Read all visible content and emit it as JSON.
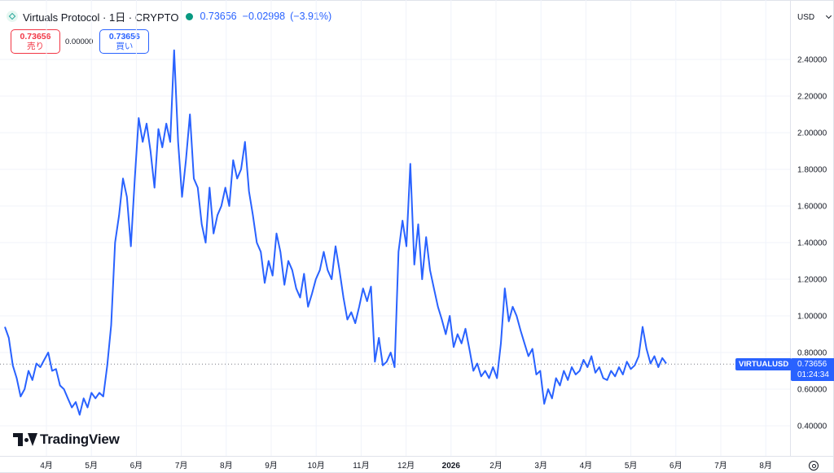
{
  "header": {
    "title": "Virtuals Protocol · 1日 · CRYPTO",
    "price": "0.73656",
    "change": "−0.02998",
    "change_pct": "(−3.91%)",
    "currency": "USD"
  },
  "quote": {
    "sell_price": "0.73656",
    "sell_label": "売り",
    "spread": "0.00000",
    "buy_price": "0.73656",
    "buy_label": "買い"
  },
  "last_price_tag": {
    "symbol": "VIRTUALUSD",
    "price": "0.73656",
    "countdown": "01:24:34"
  },
  "branding": {
    "logo_text": "TradingView"
  },
  "colors": {
    "line": "#2962ff",
    "accent": "#2962ff",
    "sell": "#f23645",
    "up": "#089981"
  },
  "chart_data": {
    "type": "line",
    "title": "",
    "xlabel": "",
    "ylabel": "",
    "ylim": [
      0.3,
      2.5
    ],
    "yticks": [
      "0.40000",
      "0.60000",
      "0.80000",
      "1.00000",
      "1.20000",
      "1.40000",
      "1.60000",
      "1.80000",
      "2.00000",
      "2.20000",
      "2.40000"
    ],
    "xticks": [
      "4月",
      "5月",
      "6月",
      "7月",
      "8月",
      "9月",
      "10月",
      "11月",
      "12月",
      "2026",
      "2月",
      "3月",
      "4月",
      "5月",
      "6月",
      "7月",
      "8月"
    ],
    "grid": true,
    "last_value": 0.73656,
    "series": [
      {
        "values": [
          0.94,
          0.88,
          0.73,
          0.66,
          0.56,
          0.6,
          0.7,
          0.65,
          0.74,
          0.72,
          0.76,
          0.8,
          0.7,
          0.71,
          0.62,
          0.6,
          0.55,
          0.5,
          0.53,
          0.46,
          0.55,
          0.5,
          0.58,
          0.55,
          0.58,
          0.56,
          0.73,
          0.95,
          1.4,
          1.55,
          1.75,
          1.65,
          1.38,
          1.75,
          2.08,
          1.95,
          2.05,
          1.9,
          1.7,
          2.02,
          1.92,
          2.05,
          1.95,
          2.45,
          1.95,
          1.65,
          1.85,
          2.1,
          1.75,
          1.7,
          1.5,
          1.4,
          1.7,
          1.45,
          1.55,
          1.6,
          1.7,
          1.6,
          1.85,
          1.75,
          1.8,
          1.95,
          1.68,
          1.55,
          1.4,
          1.35,
          1.18,
          1.3,
          1.22,
          1.45,
          1.35,
          1.17,
          1.3,
          1.25,
          1.15,
          1.1,
          1.23,
          1.05,
          1.12,
          1.2,
          1.25,
          1.35,
          1.25,
          1.2,
          1.38,
          1.25,
          1.1,
          0.98,
          1.02,
          0.96,
          1.05,
          1.15,
          1.08,
          1.16,
          0.75,
          0.88,
          0.73,
          0.75,
          0.8,
          0.72,
          1.35,
          1.52,
          1.38,
          1.83,
          1.28,
          1.5,
          1.2,
          1.43,
          1.25,
          1.15,
          1.05,
          0.98,
          0.9,
          1.0,
          0.83,
          0.9,
          0.85,
          0.93,
          0.82,
          0.7,
          0.74,
          0.67,
          0.7,
          0.66,
          0.72,
          0.66,
          0.85,
          1.15,
          0.97,
          1.05,
          1.0,
          0.92,
          0.85,
          0.78,
          0.82,
          0.68,
          0.7,
          0.52,
          0.6,
          0.55,
          0.66,
          0.62,
          0.7,
          0.65,
          0.72,
          0.68,
          0.7,
          0.76,
          0.72,
          0.78,
          0.69,
          0.72,
          0.66,
          0.65,
          0.7,
          0.67,
          0.72,
          0.68,
          0.75,
          0.71,
          0.73,
          0.78,
          0.94,
          0.82,
          0.74,
          0.78,
          0.72,
          0.77,
          0.74
        ]
      }
    ]
  }
}
